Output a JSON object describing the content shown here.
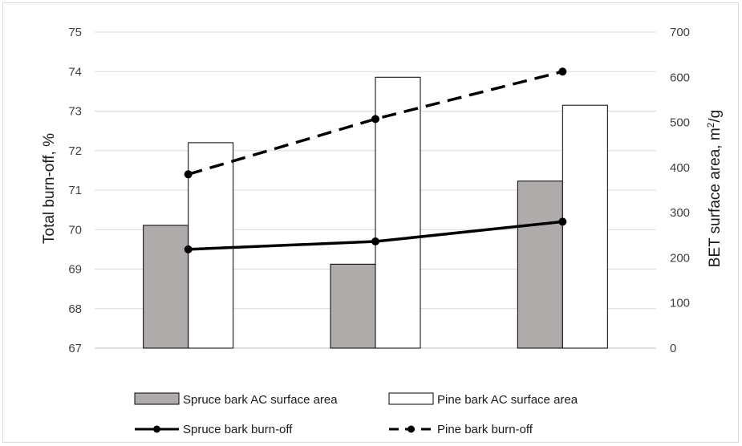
{
  "chart_data": {
    "type": "bar",
    "categories": [
      "",
      "",
      ""
    ],
    "y_left": {
      "label": "Total burn-off,  %",
      "min": 67,
      "max": 75,
      "ticks": [
        67,
        68,
        69,
        70,
        71,
        72,
        73,
        74,
        75
      ]
    },
    "y_right": {
      "label_main": "BET surface area, m",
      "label_sup": "2",
      "label_tail": "/g",
      "min": 0,
      "max": 700,
      "ticks": [
        0,
        100,
        200,
        300,
        400,
        500,
        600,
        700
      ]
    },
    "grid": true,
    "legend_position": "bottom",
    "bar_series": [
      {
        "name": "Spruce bark AC surface area",
        "axis": "right",
        "color": "#afabab",
        "values": [
          272,
          186,
          370
        ]
      },
      {
        "name": "Pine bark AC surface area",
        "axis": "right",
        "color": "#ffffff",
        "values": [
          455,
          600,
          538
        ]
      }
    ],
    "line_series": [
      {
        "name": "Spruce bark burn-off",
        "axis": "left",
        "style": "solid",
        "color": "#000000",
        "values": [
          69.5,
          69.7,
          70.2
        ]
      },
      {
        "name": "Pine bark burn-off",
        "axis": "left",
        "style": "dashed",
        "color": "#000000",
        "values": [
          71.4,
          72.8,
          74.0
        ]
      }
    ]
  }
}
